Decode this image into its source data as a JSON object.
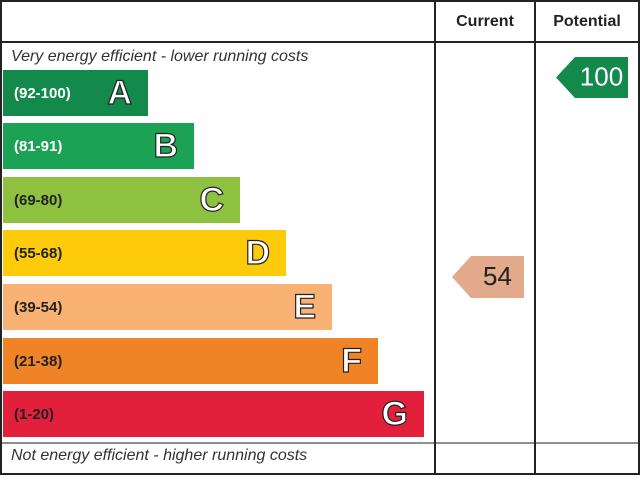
{
  "chart_data": {
    "type": "epc",
    "columns": {
      "current": "Current",
      "potential": "Potential"
    },
    "top_note": "Very energy efficient - lower running costs",
    "bottom_note": "Not energy efficient - higher running costs",
    "bands": [
      {
        "range": "(92-100)",
        "letter": "A",
        "color": "#138a4c"
      },
      {
        "range": "(81-91)",
        "letter": "B",
        "color": "#1ba254"
      },
      {
        "range": "(69-80)",
        "letter": "C",
        "color": "#8dc13f"
      },
      {
        "range": "(55-68)",
        "letter": "D",
        "color": "#fdcb0a"
      },
      {
        "range": "(39-54)",
        "letter": "E",
        "color": "#f9b274"
      },
      {
        "range": "(21-38)",
        "letter": "F",
        "color": "#f08326"
      },
      {
        "range": "(1-20)",
        "letter": "G",
        "color": "#e3203b"
      }
    ],
    "current": 54,
    "current_color": "#e2a98a",
    "potential": 100,
    "potential_color": "#138a4c"
  }
}
